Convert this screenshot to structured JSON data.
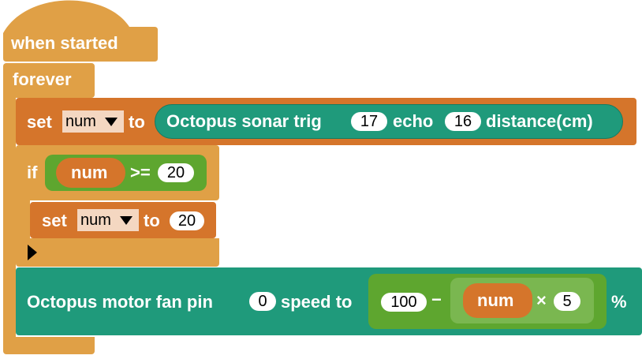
{
  "hat": {
    "label": "when started"
  },
  "loop": {
    "label": "forever"
  },
  "set_sonar": {
    "set_label": "set",
    "variable": "num",
    "to_label": "to",
    "sonar_prefix": "Octopus sonar trig",
    "trig_value": "17",
    "echo_label": "echo",
    "echo_value": "16",
    "distance_label": "distance(cm)"
  },
  "if_block": {
    "if_label": "if",
    "left_var": "num",
    "operator": ">=",
    "right_value": "20"
  },
  "set_inner": {
    "set_label": "set",
    "variable": "num",
    "to_label": "to",
    "value": "20"
  },
  "motor": {
    "prefix": "Octopus motor fan pin",
    "pin_value": "0",
    "speed_label": "speed to",
    "minuend": "100",
    "minus_op": "−",
    "var": "num",
    "times_op": "×",
    "multiplier": "5",
    "percent": "%"
  },
  "colors": {
    "control": "#e0a046",
    "variables": "#d5752b",
    "octopus": "#1f9a7b",
    "math": "#5ea62f"
  }
}
